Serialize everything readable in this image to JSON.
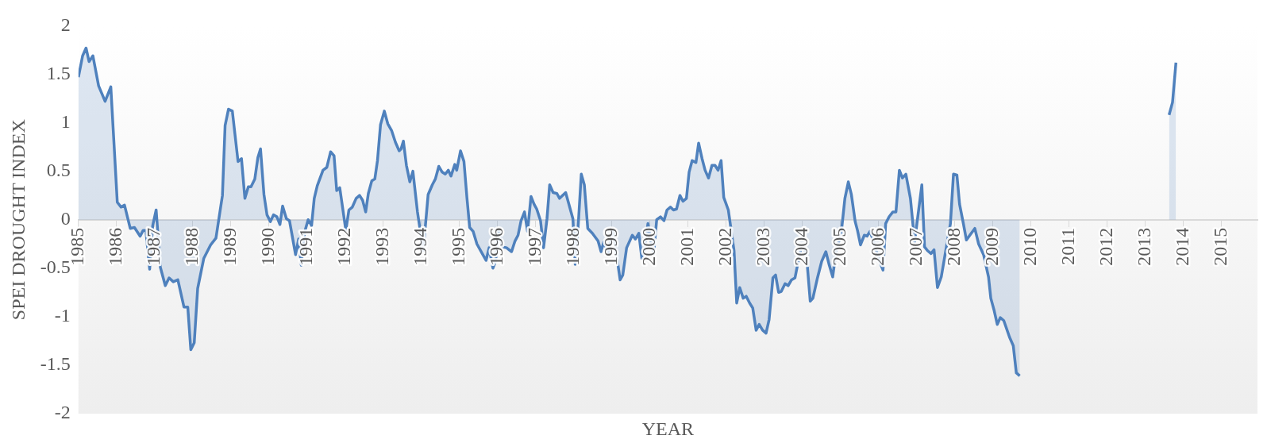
{
  "chart_data": {
    "type": "area",
    "xlabel": "YEAR",
    "ylabel": "SPEI DROUGHT INDEX",
    "xlim": [
      1985,
      2015.95
    ],
    "xticks": [
      1985,
      1986,
      1987,
      1988,
      1989,
      1990,
      1991,
      1992,
      1993,
      1994,
      1995,
      1996,
      1997,
      1998,
      1999,
      2000,
      2001,
      2002,
      2003,
      2004,
      2005,
      2006,
      2007,
      2008,
      2009,
      2010,
      2011,
      2012,
      2013,
      2014,
      2015
    ],
    "ylim": [
      -2,
      2
    ],
    "yticks": [
      -2,
      -1.5,
      -1,
      -0.5,
      0,
      0.5,
      1,
      1.5,
      2
    ],
    "grid": false,
    "series": [
      {
        "color": "#4f81bd",
        "x": [
          1985.0,
          1985.11,
          1985.2,
          1985.28,
          1985.38,
          1985.53,
          1985.7,
          1985.85,
          1986.02,
          1986.12,
          1986.21,
          1986.36,
          1986.47,
          1986.62,
          1986.7,
          1986.77,
          1986.87,
          1986.95,
          1987.04,
          1987.15,
          1987.28,
          1987.38,
          1987.49,
          1987.61,
          1987.77,
          1987.87,
          1987.95,
          1988.04,
          1988.13,
          1988.29,
          1988.47,
          1988.61,
          1988.78,
          1988.85,
          1988.94,
          1989.04,
          1989.19,
          1989.28,
          1989.37,
          1989.46,
          1989.53,
          1989.63,
          1989.71,
          1989.78,
          1989.87,
          1989.95,
          1990.04,
          1990.12,
          1990.21,
          1990.29,
          1990.36,
          1990.46,
          1990.54,
          1990.7,
          1990.78,
          1990.85,
          1990.93,
          1991.03,
          1991.12,
          1991.19,
          1991.27,
          1991.42,
          1991.52,
          1991.62,
          1991.71,
          1991.78,
          1991.86,
          1992.02,
          1992.1,
          1992.19,
          1992.29,
          1992.38,
          1992.46,
          1992.54,
          1992.61,
          1992.7,
          1992.78,
          1992.85,
          1992.93,
          1993.03,
          1993.12,
          1993.22,
          1993.32,
          1993.42,
          1993.47,
          1993.53,
          1993.61,
          1993.7,
          1993.78,
          1993.9,
          1994.05,
          1994.18,
          1994.29,
          1994.37,
          1994.46,
          1994.55,
          1994.63,
          1994.71,
          1994.78,
          1994.88,
          1994.93,
          1995.03,
          1995.12,
          1995.2,
          1995.27,
          1995.36,
          1995.46,
          1995.6,
          1995.7,
          1995.78,
          1995.88,
          1995.95,
          1996.03,
          1996.13,
          1996.24,
          1996.37,
          1996.46,
          1996.54,
          1996.62,
          1996.71,
          1996.79,
          1996.88,
          1996.96,
          1997.03,
          1997.13,
          1997.21,
          1997.3,
          1997.37,
          1997.46,
          1997.56,
          1997.63,
          1997.79,
          1997.98,
          1998.04,
          1998.11,
          1998.2,
          1998.28,
          1998.37,
          1998.49,
          1998.64,
          1998.72,
          1998.79,
          1998.91,
          1999.03,
          1999.12,
          1999.22,
          1999.29,
          1999.39,
          1999.54,
          1999.62,
          1999.71,
          1999.79,
          1999.86,
          1999.95,
          2000.03,
          2000.1,
          2000.18,
          2000.28,
          2000.37,
          2000.45,
          2000.54,
          2000.62,
          2000.7,
          2000.79,
          2000.87,
          2000.96,
          2001.03,
          2001.11,
          2001.21,
          2001.28,
          2001.37,
          2001.45,
          2001.54,
          2001.63,
          2001.71,
          2001.79,
          2001.87,
          2001.94,
          2002.06,
          2002.21,
          2002.28,
          2002.36,
          2002.45,
          2002.53,
          2002.62,
          2002.7,
          2002.79,
          2002.87,
          2002.96,
          2003.05,
          2003.13,
          2003.23,
          2003.3,
          2003.38,
          2003.45,
          2003.55,
          2003.63,
          2003.72,
          2003.81,
          2003.91,
          2003.98,
          2004.06,
          2004.13,
          2004.21,
          2004.28,
          2004.4,
          2004.51,
          2004.62,
          2004.71,
          2004.8,
          2004.89,
          2005.02,
          2005.12,
          2005.21,
          2005.29,
          2005.39,
          2005.45,
          2005.53,
          2005.63,
          2005.7,
          2005.78,
          2005.87,
          2005.94,
          2006.02,
          2006.12,
          2006.19,
          2006.28,
          2006.38,
          2006.46,
          2006.55,
          2006.63,
          2006.72,
          2006.84,
          2006.95,
          2007.04,
          2007.14,
          2007.21,
          2007.29,
          2007.38,
          2007.46,
          2007.55,
          2007.65,
          2007.78,
          2007.89,
          2007.97,
          2008.06,
          2008.13,
          2008.23,
          2008.31,
          2008.4,
          2008.53,
          2008.63,
          2008.76,
          2008.89,
          2008.95,
          2009.04,
          2009.12,
          2009.2,
          2009.29,
          2009.44,
          2009.54,
          2009.62,
          2009.71,
          null,
          2013.63,
          2013.72,
          2013.81
        ],
        "values": [
          1.47,
          1.69,
          1.77,
          1.63,
          1.69,
          1.38,
          1.22,
          1.37,
          0.18,
          0.13,
          0.15,
          -0.09,
          -0.08,
          -0.17,
          -0.11,
          -0.11,
          -0.51,
          -0.06,
          0.1,
          -0.49,
          -0.68,
          -0.6,
          -0.64,
          -0.62,
          -0.9,
          -0.9,
          -1.34,
          -1.27,
          -0.71,
          -0.4,
          -0.26,
          -0.19,
          0.25,
          0.97,
          1.14,
          1.12,
          0.6,
          0.63,
          0.22,
          0.34,
          0.34,
          0.42,
          0.64,
          0.73,
          0.26,
          0.05,
          -0.02,
          0.05,
          0.03,
          -0.05,
          0.14,
          0.01,
          -0.01,
          -0.36,
          -0.2,
          -0.47,
          -0.14,
          0.0,
          -0.06,
          0.22,
          0.35,
          0.51,
          0.54,
          0.7,
          0.66,
          0.3,
          0.33,
          -0.11,
          0.1,
          0.13,
          0.22,
          0.25,
          0.2,
          0.08,
          0.27,
          0.4,
          0.42,
          0.61,
          0.98,
          1.12,
          0.99,
          0.92,
          0.8,
          0.71,
          0.73,
          0.81,
          0.56,
          0.39,
          0.5,
          0.08,
          -0.32,
          0.26,
          0.36,
          0.42,
          0.55,
          0.49,
          0.47,
          0.51,
          0.45,
          0.57,
          0.51,
          0.71,
          0.6,
          0.22,
          -0.08,
          -0.12,
          -0.25,
          -0.35,
          -0.42,
          -0.29,
          -0.5,
          -0.43,
          -0.11,
          -0.28,
          -0.29,
          -0.33,
          -0.22,
          -0.16,
          -0.01,
          0.08,
          -0.12,
          0.24,
          0.16,
          0.11,
          -0.01,
          -0.29,
          0.01,
          0.36,
          0.28,
          0.27,
          0.22,
          0.28,
          0.01,
          -0.46,
          -0.12,
          0.47,
          0.36,
          -0.09,
          -0.14,
          -0.22,
          -0.33,
          -0.23,
          -0.35,
          -0.11,
          -0.35,
          -0.62,
          -0.57,
          -0.29,
          -0.16,
          -0.2,
          -0.14,
          -0.4,
          -0.32,
          -0.04,
          -0.23,
          -0.35,
          0.0,
          0.03,
          -0.01,
          0.1,
          0.13,
          0.1,
          0.11,
          0.25,
          0.19,
          0.22,
          0.49,
          0.61,
          0.59,
          0.79,
          0.63,
          0.51,
          0.43,
          0.56,
          0.56,
          0.51,
          0.61,
          0.23,
          0.1,
          -0.32,
          -0.86,
          -0.7,
          -0.81,
          -0.79,
          -0.86,
          -0.91,
          -1.14,
          -1.08,
          -1.14,
          -1.17,
          -1.03,
          -0.6,
          -0.57,
          -0.75,
          -0.74,
          -0.66,
          -0.68,
          -0.62,
          -0.6,
          -0.4,
          -0.28,
          -0.28,
          -0.46,
          -0.84,
          -0.81,
          -0.6,
          -0.43,
          -0.33,
          -0.47,
          -0.59,
          -0.32,
          -0.15,
          0.22,
          0.39,
          0.26,
          -0.02,
          -0.11,
          -0.26,
          -0.16,
          -0.17,
          -0.12,
          -0.22,
          -0.32,
          -0.42,
          -0.52,
          -0.04,
          0.03,
          0.08,
          0.08,
          0.51,
          0.43,
          0.47,
          0.22,
          -0.23,
          0.05,
          0.36,
          -0.28,
          -0.32,
          -0.35,
          -0.31,
          -0.7,
          -0.59,
          -0.29,
          -0.04,
          0.47,
          0.46,
          0.16,
          -0.04,
          -0.21,
          -0.16,
          -0.09,
          -0.25,
          -0.36,
          -0.59,
          -0.81,
          -0.94,
          -1.08,
          -1.01,
          -1.04,
          -1.21,
          -1.3,
          -1.58,
          -1.61,
          null,
          1.08,
          1.21,
          1.62
        ]
      }
    ]
  }
}
